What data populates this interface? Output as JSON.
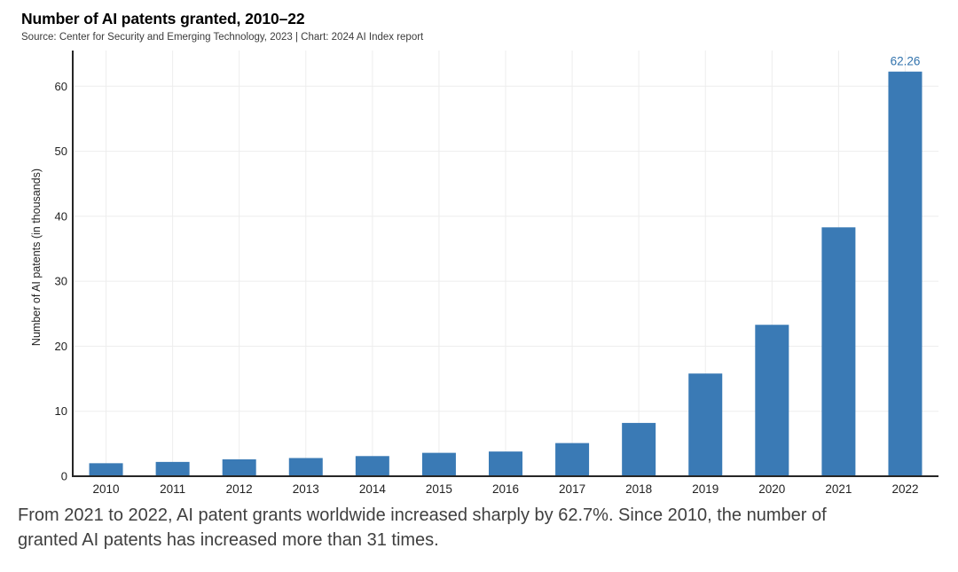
{
  "header": {
    "title": "Number of AI patents granted, 2010–22",
    "source": "Source: Center for Security and Emerging Technology, 2023 | Chart: 2024 AI Index report"
  },
  "chart_data": {
    "type": "bar",
    "categories": [
      "2010",
      "2011",
      "2012",
      "2013",
      "2014",
      "2015",
      "2016",
      "2017",
      "2018",
      "2019",
      "2020",
      "2021",
      "2022"
    ],
    "values": [
      2.0,
      2.2,
      2.6,
      2.8,
      3.1,
      3.6,
      3.8,
      5.1,
      8.2,
      15.8,
      23.3,
      38.3,
      62.26
    ],
    "value_labels": {
      "2022": "62.26"
    },
    "title": "Number of AI patents granted, 2010–22",
    "xlabel": "",
    "ylabel": "Number of AI patents (in thousands)",
    "yticks": [
      0,
      10,
      20,
      30,
      40,
      50,
      60
    ],
    "ylim": [
      0,
      65.5
    ],
    "grid": true,
    "legend": "none",
    "bar_color": "#3a7ab5",
    "label_color": "#3273ad",
    "axis_color": "#262626",
    "text_color": "#1f1f1f",
    "grid_color": "#ededed"
  },
  "caption": {
    "text": "From 2021 to 2022, AI patent grants worldwide increased sharply by 62.7%. Since 2010, the number of granted AI patents has increased more than 31 times."
  }
}
